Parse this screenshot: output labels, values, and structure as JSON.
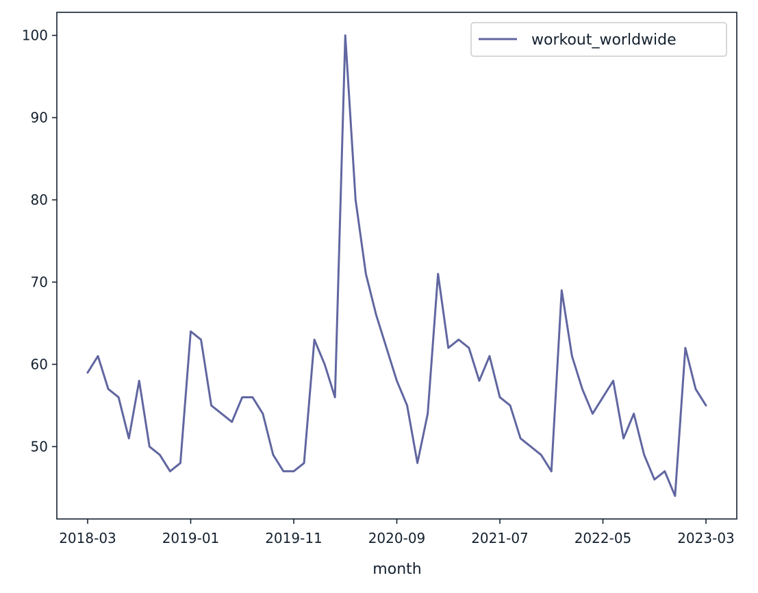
{
  "chart_data": {
    "type": "line",
    "title": "",
    "xlabel": "month",
    "ylabel": "",
    "x": [
      "2018-03",
      "2018-04",
      "2018-05",
      "2018-06",
      "2018-07",
      "2018-08",
      "2018-09",
      "2018-10",
      "2018-11",
      "2018-12",
      "2019-01",
      "2019-02",
      "2019-03",
      "2019-04",
      "2019-05",
      "2019-06",
      "2019-07",
      "2019-08",
      "2019-09",
      "2019-10",
      "2019-11",
      "2019-12",
      "2020-01",
      "2020-02",
      "2020-03",
      "2020-04",
      "2020-05",
      "2020-06",
      "2020-07",
      "2020-08",
      "2020-09",
      "2020-10",
      "2020-11",
      "2020-12",
      "2021-01",
      "2021-02",
      "2021-03",
      "2021-04",
      "2021-05",
      "2021-06",
      "2021-07",
      "2021-08",
      "2021-09",
      "2021-10",
      "2021-11",
      "2021-12",
      "2022-01",
      "2022-02",
      "2022-03",
      "2022-04",
      "2022-05",
      "2022-06",
      "2022-07",
      "2022-08",
      "2022-09",
      "2022-10",
      "2022-11",
      "2022-12",
      "2023-01",
      "2023-02",
      "2023-03"
    ],
    "series": [
      {
        "name": "workout_worldwide",
        "color": "#6066a0",
        "values": [
          59,
          61,
          57,
          56,
          51,
          58,
          50,
          49,
          47,
          48,
          64,
          63,
          55,
          54,
          53,
          56,
          56,
          54,
          49,
          47,
          47,
          48,
          63,
          60,
          56,
          100,
          80,
          71,
          66,
          62,
          58,
          55,
          48,
          54,
          71,
          62,
          63,
          62,
          58,
          61,
          56,
          55,
          51,
          50,
          49,
          47,
          69,
          61,
          57,
          54,
          56,
          58,
          51,
          54,
          49,
          46,
          47,
          44,
          62,
          57,
          55
        ]
      }
    ],
    "xticks": [
      "2018-03",
      "2019-01",
      "2019-11",
      "2020-09",
      "2021-07",
      "2022-05",
      "2023-03"
    ],
    "yticks": [
      50,
      60,
      70,
      80,
      90,
      100
    ],
    "ylim": [
      41.2,
      102.8
    ],
    "xlim": [
      "2018-03",
      "2023-03"
    ],
    "grid": false,
    "legend_position": "top-right"
  }
}
